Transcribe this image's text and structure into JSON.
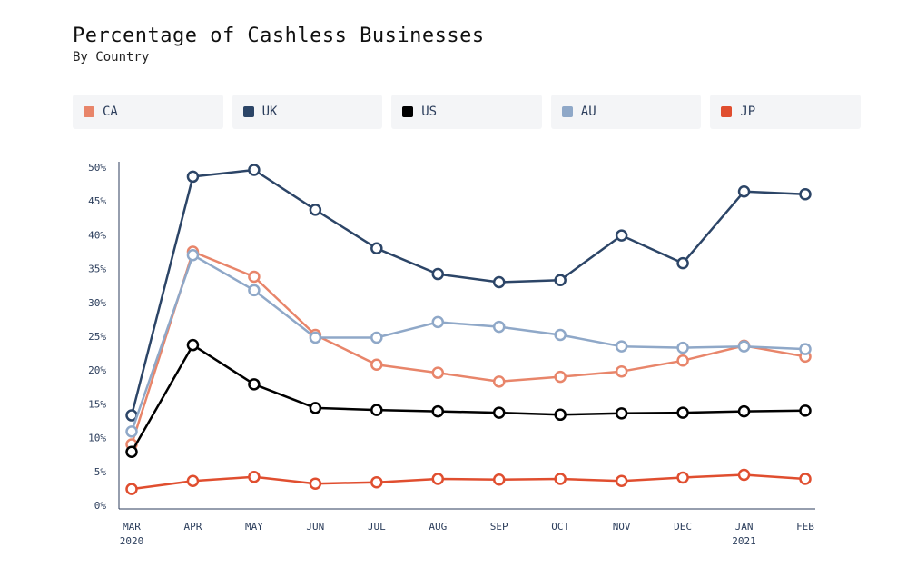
{
  "header": {
    "title": "Percentage of Cashless Businesses",
    "subtitle": "By Country"
  },
  "chart_data": {
    "type": "line",
    "title": "Percentage of Cashless Businesses",
    "subtitle": "By Country",
    "xlabel": "",
    "ylabel": "",
    "x": [
      "MAR",
      "APR",
      "MAY",
      "JUN",
      "JUL",
      "AUG",
      "SEP",
      "OCT",
      "NOV",
      "DEC",
      "JAN",
      "FEB"
    ],
    "x_year_labels": [
      "2020",
      "",
      "",
      "",
      "",
      "",
      "",
      "",
      "",
      "",
      "2021",
      ""
    ],
    "ylim": [
      0,
      50
    ],
    "yticks": [
      "0%",
      "5%",
      "10%",
      "15%",
      "20%",
      "25%",
      "30%",
      "35%",
      "40%",
      "45%",
      "50%"
    ],
    "grid": false,
    "legend_position": "top",
    "series": [
      {
        "name": "CA",
        "color": "#e8856a",
        "values": [
          9,
          37.5,
          33.8,
          25.2,
          20.8,
          19.6,
          18.3,
          19.0,
          19.8,
          21.4,
          23.6,
          22.0
        ]
      },
      {
        "name": "UK",
        "color": "#2c4567",
        "values": [
          13.3,
          48.6,
          49.6,
          43.7,
          38.0,
          34.2,
          33.0,
          33.3,
          39.9,
          35.8,
          46.4,
          46.0
        ]
      },
      {
        "name": "US",
        "color": "#000000",
        "values": [
          7.9,
          23.7,
          17.9,
          14.4,
          14.1,
          13.9,
          13.7,
          13.4,
          13.6,
          13.7,
          13.9,
          14.0
        ]
      },
      {
        "name": "AU",
        "color": "#8fa8c8",
        "values": [
          10.9,
          37.0,
          31.8,
          24.8,
          24.8,
          27.1,
          26.4,
          25.2,
          23.5,
          23.3,
          23.5,
          23.1
        ]
      },
      {
        "name": "JP",
        "color": "#e04e2f",
        "values": [
          2.4,
          3.6,
          4.2,
          3.2,
          3.4,
          3.9,
          3.8,
          3.9,
          3.6,
          4.1,
          4.5,
          3.9
        ]
      }
    ]
  }
}
